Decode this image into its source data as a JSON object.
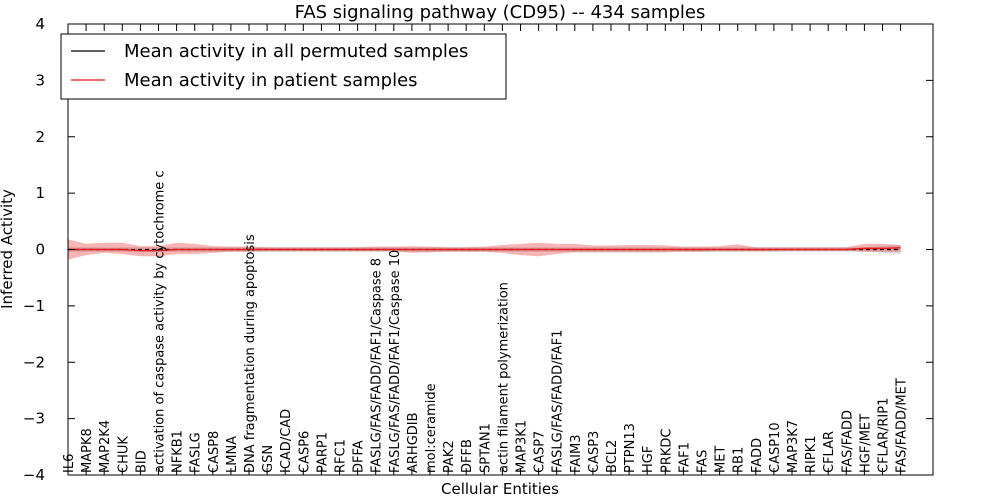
{
  "chart_data": {
    "type": "line",
    "title": "FAS signaling pathway (CD95) -- 434 samples",
    "xlabel": "Cellular Entities",
    "ylabel": "Inferred Activity",
    "ylim": [
      -4,
      4
    ],
    "yticks": [
      "4",
      "3",
      "2",
      "1",
      "0",
      "−1",
      "−2",
      "−3",
      "−4"
    ],
    "legend_position": "top-left",
    "categories": [
      "IL6",
      "MAPK8",
      "MAP2K4",
      "CHUK",
      "BID",
      "activation of caspase activity by cytochrome c",
      "NFKB1",
      "FASLG",
      "CASP8",
      "LMNA",
      "DNA fragmentation during apoptosis",
      "GSN",
      "ICAD/CAD",
      "CASP6",
      "PARP1",
      "RFC1",
      "DFFA",
      "FASLG/FAS/FADD/FAF1/Caspase 8",
      "FASLG/FAS/FADD/FAF1/Caspase 10",
      "ARHGDIB",
      "mol:ceramide",
      "PAK2",
      "DFFB",
      "SPTAN1",
      "actin filament polymerization",
      "MAP3K1",
      "CASP7",
      "FASLG/FAS/FADD/FAF1",
      "FAIM3",
      "CASP3",
      "BCL2",
      "PTPN13",
      "HGF",
      "PRKDC",
      "FAF1",
      "FAS",
      "MET",
      "RB1",
      "FADD",
      "CASP10",
      "MAP3K7",
      "RIPK1",
      "CFLAR",
      "FAS/FADD",
      "HGF/MET",
      "CFLAR/RIP1",
      "FAS/FADD/MET"
    ],
    "series": [
      {
        "name": "Mean activity in all permuted samples",
        "color": "#000000",
        "values": [
          0,
          0,
          0,
          0,
          0,
          0,
          0,
          0,
          0,
          0,
          0,
          0,
          0,
          0,
          0,
          0,
          0,
          0,
          0,
          0,
          0,
          0,
          0,
          0,
          0,
          0,
          0,
          0,
          0,
          0,
          0,
          0,
          0,
          0,
          0,
          0,
          0,
          0,
          0,
          0,
          0,
          0,
          0,
          0,
          0,
          0,
          0
        ],
        "band_lower": [
          -0.04,
          -0.04,
          -0.04,
          -0.04,
          -0.04,
          -0.04,
          -0.04,
          -0.04,
          -0.04,
          -0.04,
          -0.04,
          -0.04,
          -0.04,
          -0.04,
          -0.04,
          -0.04,
          -0.04,
          -0.04,
          -0.04,
          -0.04,
          -0.04,
          -0.04,
          -0.04,
          -0.04,
          -0.04,
          -0.04,
          -0.04,
          -0.04,
          -0.04,
          -0.04,
          -0.04,
          -0.04,
          -0.04,
          -0.04,
          -0.04,
          -0.04,
          -0.04,
          -0.04,
          -0.04,
          -0.04,
          -0.04,
          -0.04,
          -0.04,
          -0.04,
          -0.04,
          -0.06,
          -0.08
        ],
        "band_upper": [
          0.04,
          0.04,
          0.04,
          0.04,
          0.04,
          0.04,
          0.04,
          0.04,
          0.04,
          0.04,
          0.04,
          0.04,
          0.04,
          0.04,
          0.04,
          0.04,
          0.04,
          0.04,
          0.04,
          0.04,
          0.04,
          0.04,
          0.04,
          0.04,
          0.04,
          0.04,
          0.04,
          0.04,
          0.04,
          0.04,
          0.04,
          0.04,
          0.04,
          0.04,
          0.04,
          0.04,
          0.04,
          0.04,
          0.04,
          0.04,
          0.04,
          0.04,
          0.04,
          0.04,
          0.04,
          0.06,
          0.08
        ]
      },
      {
        "name": "Mean activity in patient samples",
        "color": "#e41a1c",
        "values": [
          0.0,
          0.0,
          0.0,
          0.0,
          -0.02,
          -0.02,
          0.0,
          0.0,
          0.0,
          0.0,
          0.0,
          0.0,
          0.0,
          0.0,
          0.0,
          0.0,
          0.0,
          0.0,
          0.0,
          0.0,
          0.0,
          0.0,
          0.0,
          0.0,
          0.0,
          0.0,
          0.0,
          0.0,
          0.0,
          0.0,
          0.0,
          0.0,
          0.0,
          0.0,
          0.0,
          0.0,
          0.0,
          0.0,
          0.0,
          0.0,
          0.0,
          0.0,
          0.0,
          0.0,
          0.02,
          0.02,
          0.03
        ],
        "band_lower": [
          -0.18,
          -0.1,
          -0.06,
          -0.08,
          -0.12,
          -0.12,
          -0.08,
          -0.08,
          -0.06,
          -0.04,
          -0.04,
          -0.03,
          -0.03,
          -0.03,
          -0.03,
          -0.03,
          -0.03,
          -0.03,
          -0.03,
          -0.06,
          -0.05,
          -0.04,
          -0.04,
          -0.04,
          -0.06,
          -0.1,
          -0.12,
          -0.08,
          -0.05,
          -0.05,
          -0.05,
          -0.05,
          -0.05,
          -0.05,
          -0.04,
          -0.04,
          -0.03,
          -0.03,
          -0.03,
          -0.03,
          -0.02,
          -0.02,
          -0.02,
          -0.02,
          -0.04,
          -0.04,
          -0.04
        ],
        "band_upper": [
          0.18,
          0.1,
          0.12,
          0.12,
          0.06,
          0.06,
          0.12,
          0.1,
          0.06,
          0.05,
          0.05,
          0.04,
          0.04,
          0.04,
          0.04,
          0.04,
          0.04,
          0.05,
          0.05,
          0.06,
          0.05,
          0.04,
          0.04,
          0.05,
          0.08,
          0.1,
          0.12,
          0.1,
          0.1,
          0.07,
          0.07,
          0.08,
          0.08,
          0.07,
          0.05,
          0.05,
          0.06,
          0.09,
          0.04,
          0.04,
          0.04,
          0.04,
          0.04,
          0.04,
          0.1,
          0.1,
          0.08
        ]
      }
    ]
  }
}
